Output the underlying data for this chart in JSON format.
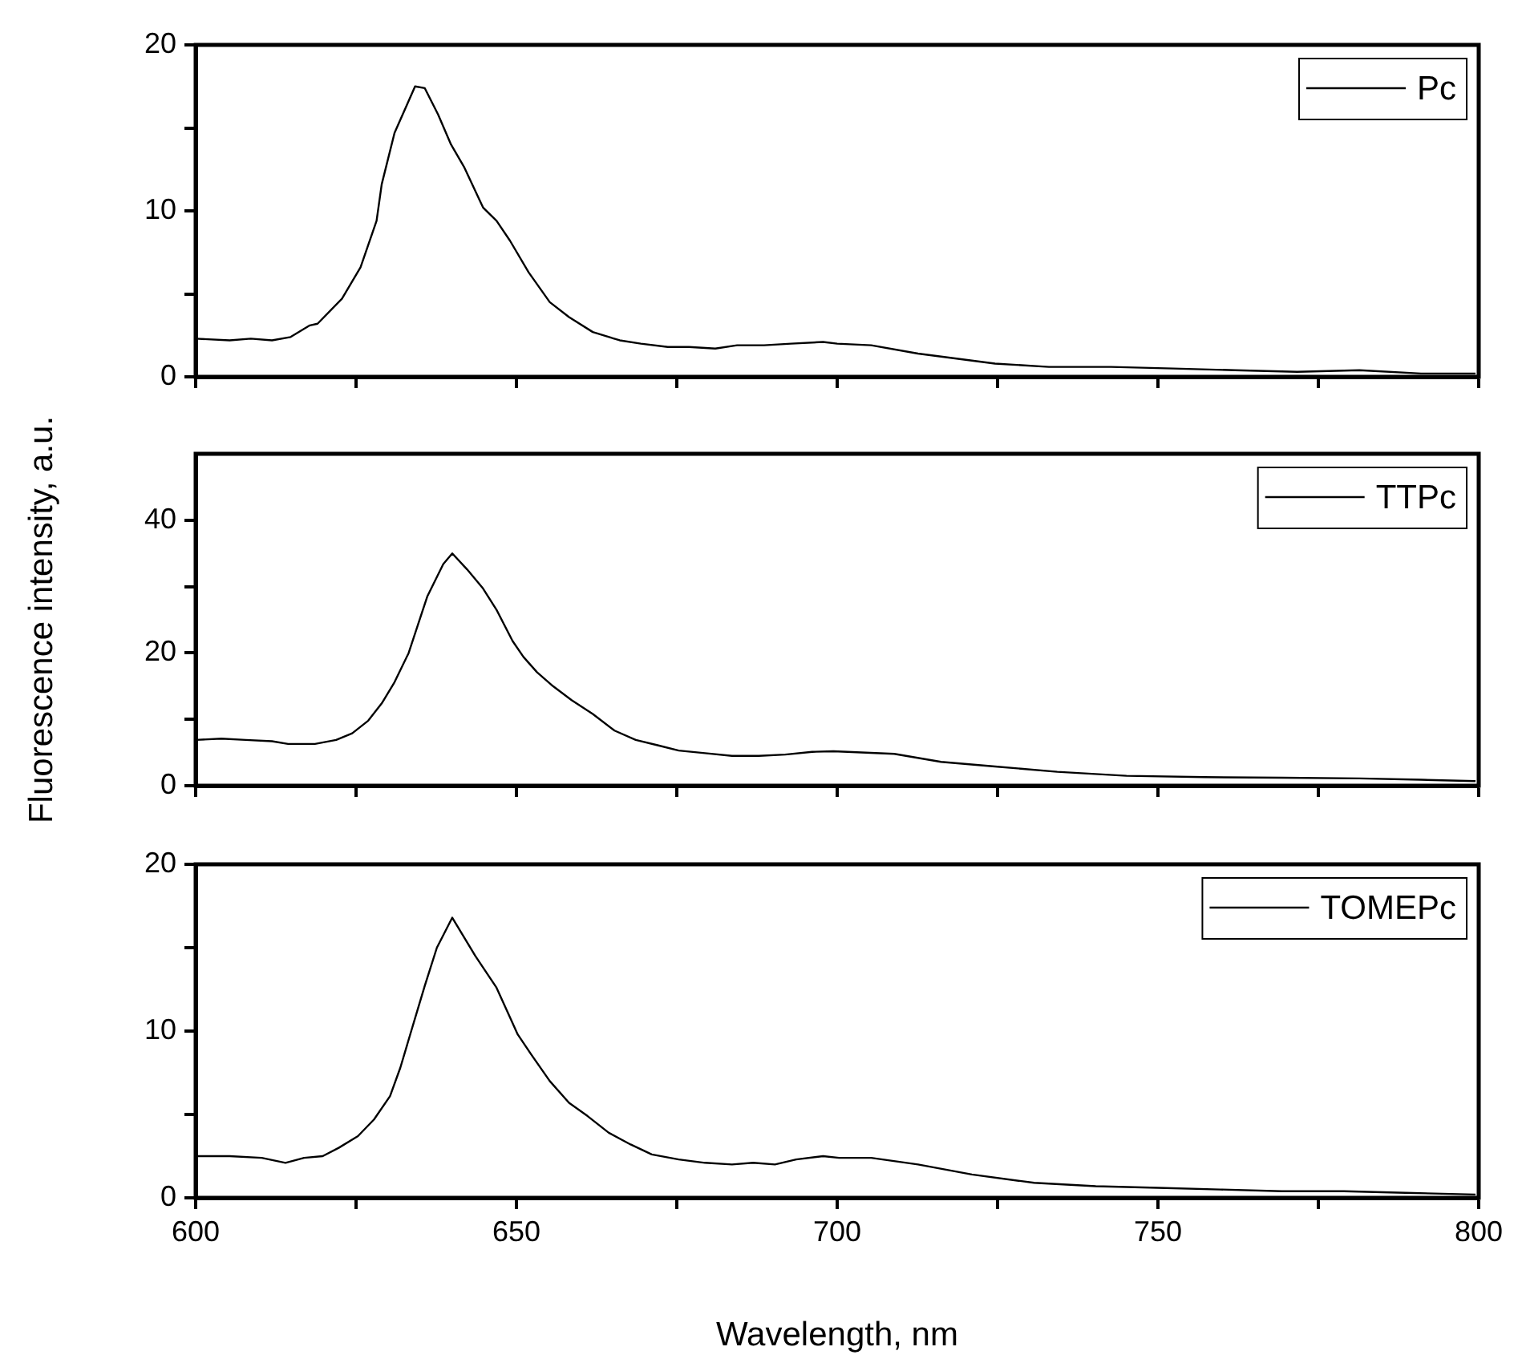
{
  "chart_data": [
    {
      "type": "line",
      "x": [
        600,
        605.3,
        608.6,
        611.9,
        614.8,
        617.8,
        619,
        622.8,
        625.7,
        628.2,
        629,
        631,
        634.2,
        635.7,
        637.8,
        639.8,
        641.9,
        644.8,
        646.9,
        649,
        651.9,
        655.2,
        658.2,
        661.9,
        666.1,
        669.4,
        673.6,
        676.9,
        681,
        684.4,
        688.6,
        692.8,
        697.8,
        700,
        705.3,
        712.6,
        718.6,
        724.6,
        733,
        742.7,
        752.4,
        762,
        771.7,
        781.4,
        791,
        799.5
      ],
      "series": [
        {
          "name": "Pc",
          "color": "#000000",
          "values": [
            2.3,
            2.2,
            2.3,
            2.2,
            2.4,
            3.1,
            3.2,
            4.7,
            6.6,
            9.4,
            11.6,
            14.7,
            17.5,
            17.4,
            15.8,
            14.0,
            12.6,
            10.2,
            9.4,
            8.2,
            6.3,
            4.5,
            3.6,
            2.7,
            2.2,
            2.0,
            1.8,
            1.8,
            1.7,
            1.9,
            1.9,
            2.0,
            2.1,
            2.0,
            1.9,
            1.4,
            1.1,
            0.8,
            0.6,
            0.6,
            0.5,
            0.4,
            0.3,
            0.4,
            0.2,
            0.2
          ]
        }
      ],
      "xlim": [
        600,
        800
      ],
      "xticks": [
        600,
        {
          "value": 625,
          "label": null
        },
        650,
        {
          "value": 675,
          "label": null
        },
        700,
        {
          "value": 725,
          "label": null
        },
        750,
        {
          "value": 775,
          "label": null
        },
        800
      ],
      "ylim": [
        0,
        20
      ],
      "yticks": [
        0,
        {
          "value": 5,
          "label": null
        },
        10,
        {
          "value": 15,
          "label": null
        },
        20
      ],
      "tick_labels": "y",
      "legend": "top right"
    },
    {
      "type": "line",
      "x": [
        600,
        604,
        607.8,
        611.9,
        614.4,
        618.6,
        621.9,
        624.4,
        626.9,
        629,
        631,
        633.2,
        636.1,
        638.6,
        640,
        642.3,
        644.8,
        646.9,
        649.4,
        651.1,
        653.2,
        655.7,
        658.6,
        661.9,
        665.3,
        668.6,
        672,
        675.3,
        679.4,
        683.6,
        687.8,
        691.9,
        696.1,
        699.4,
        708.9,
        716.2,
        724.6,
        734.3,
        745.1,
        757.2,
        769.3,
        781.4,
        791,
        799.5
      ],
      "series": [
        {
          "name": "TTPc",
          "color": "#000000",
          "values": [
            6.9,
            7.1,
            6.9,
            6.7,
            6.3,
            6.3,
            6.9,
            7.9,
            9.8,
            12.4,
            15.6,
            20.0,
            28.5,
            33.4,
            35.0,
            32.6,
            29.7,
            26.5,
            21.8,
            19.4,
            17.1,
            15.0,
            12.9,
            10.8,
            8.3,
            6.9,
            6.1,
            5.3,
            4.9,
            4.5,
            4.5,
            4.7,
            5.1,
            5.2,
            4.8,
            3.6,
            2.9,
            2.1,
            1.5,
            1.3,
            1.2,
            1.1,
            0.9,
            0.7
          ]
        }
      ],
      "ylabel": "Fluorescence intensity, a.u.",
      "xlim": [
        600,
        800
      ],
      "xticks": [
        600,
        {
          "value": 625,
          "label": null
        },
        650,
        {
          "value": 675,
          "label": null
        },
        700,
        {
          "value": 725,
          "label": null
        },
        750,
        {
          "value": 775,
          "label": null
        },
        800
      ],
      "ylim": [
        0,
        50
      ],
      "yticks": [
        0,
        {
          "value": 10,
          "label": null
        },
        20,
        {
          "value": 30,
          "label": null
        },
        40
      ],
      "tick_labels": "y",
      "legend": "top right"
    },
    {
      "type": "line",
      "x": [
        600,
        605.3,
        610.3,
        614,
        616.9,
        619.8,
        622.3,
        625.3,
        627.8,
        630.3,
        631.9,
        633.6,
        635.7,
        637.6,
        640,
        643.6,
        646.9,
        650.2,
        652.3,
        655.2,
        658.2,
        661.1,
        664.4,
        667.8,
        671.1,
        675.3,
        679.4,
        683.6,
        686.9,
        690.3,
        693.6,
        697.8,
        700.3,
        705.3,
        712.6,
        721,
        730.7,
        740.3,
        750,
        759.7,
        769.3,
        779,
        788.6,
        799.5
      ],
      "series": [
        {
          "name": "TOMEPc",
          "color": "#000000",
          "values": [
            2.5,
            2.5,
            2.4,
            2.1,
            2.4,
            2.5,
            3.0,
            3.7,
            4.7,
            6.1,
            7.8,
            10.0,
            12.7,
            15.0,
            16.8,
            14.5,
            12.6,
            9.8,
            8.6,
            7.0,
            5.7,
            4.9,
            3.9,
            3.2,
            2.6,
            2.3,
            2.1,
            2.0,
            2.1,
            2.0,
            2.3,
            2.5,
            2.4,
            2.4,
            2.0,
            1.4,
            0.9,
            0.7,
            0.6,
            0.5,
            0.4,
            0.4,
            0.3,
            0.2
          ]
        }
      ],
      "xlabel": "Wavelength, nm",
      "xlim": [
        600,
        800
      ],
      "xticks": [
        600,
        {
          "value": 625,
          "label": null
        },
        650,
        {
          "value": 675,
          "label": null
        },
        700,
        {
          "value": 725,
          "label": null
        },
        750,
        {
          "value": 775,
          "label": null
        },
        800
      ],
      "ylim": [
        0,
        20
      ],
      "yticks": [
        0,
        {
          "value": 5,
          "label": null
        },
        10,
        {
          "value": 15,
          "label": null
        },
        20
      ],
      "legend": "top right"
    }
  ]
}
